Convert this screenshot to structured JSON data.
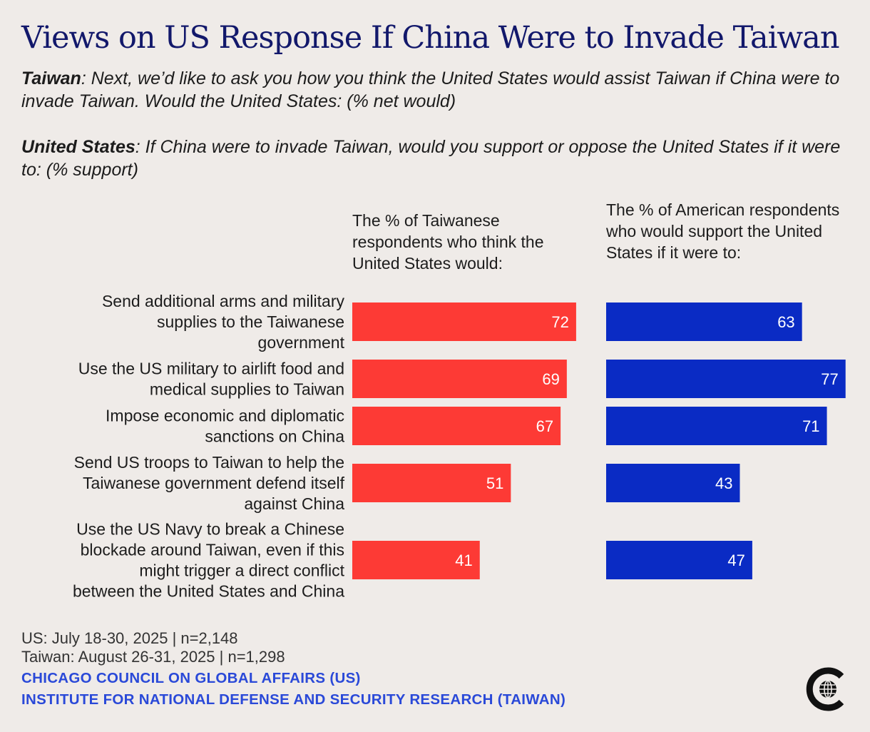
{
  "colors": {
    "title": "#12186b",
    "taiwan_bar": "#fd3a35",
    "us_bar": "#0a2bc4",
    "source": "#2a49d8"
  },
  "header": {
    "title": "Views on US Response If China Were to Invade Taiwan",
    "q_taiwan_label": "Taiwan",
    "q_taiwan_text": ": Next, we’d like to ask you how you think the United States would assist Taiwan if China were to invade Taiwan. Would the United States: (% net would)",
    "q_us_label": "United States",
    "q_us_text": ": If China were to invade Taiwan, would you support or oppose the United States if it were to: (% support)"
  },
  "columns": {
    "taiwan_heading": "The % of Taiwanese respondents who think the United States would:",
    "us_heading": "The % of American respondents who would support the United States if it were to:"
  },
  "chart_data": {
    "type": "bar",
    "orientation": "horizontal",
    "title": "Views on US Response If China Were to Invade Taiwan",
    "xlabel": "",
    "ylabel": "",
    "xlim": [
      0,
      100
    ],
    "categories": [
      [
        "Send additional arms and military",
        "supplies to the Taiwanese",
        "government"
      ],
      [
        "Use the US military to airlift food and",
        "medical supplies to Taiwan"
      ],
      [
        "Impose economic and diplomatic",
        "sanctions on China"
      ],
      [
        "Send US troops to Taiwan to help the",
        "Taiwanese government defend itself",
        "against China"
      ],
      [
        "Use the US Navy to break a Chinese",
        "blockade around Taiwan, even if this",
        "might trigger a direct conflict",
        "between the United States and China"
      ]
    ],
    "series": [
      {
        "name": "Taiwanese respondents (% net would)",
        "values": [
          72,
          69,
          67,
          51,
          41
        ]
      },
      {
        "name": "American respondents (% support)",
        "values": [
          63,
          77,
          71,
          43,
          47
        ]
      }
    ]
  },
  "footer": {
    "us_fieldwork": "US: July 18-30, 2025 | n=2,148",
    "taiwan_fieldwork": "Taiwan: August 26-31, 2025 | n=1,298",
    "source_us": "CHICAGO COUNCIL ON GLOBAL AFFAIRS (US)",
    "source_taiwan": "INSTITUTE FOR NATIONAL DEFENSE AND SECURITY RESEARCH (TAIWAN)",
    "logo_icon": "globe-c-logo-icon"
  }
}
